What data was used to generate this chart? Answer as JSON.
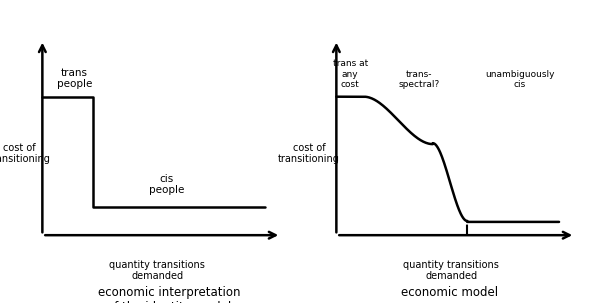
{
  "background_color": "#ffffff",
  "fig_width": 6.0,
  "fig_height": 3.03,
  "left_chart": {
    "title": "economic interpretation\nof the identity model",
    "ylabel": "cost of\ntransitioning",
    "xlabel": "quantity transitions\ndemanded",
    "curve_label_trans": "trans\npeople",
    "curve_label_cis": "cis\npeople"
  },
  "right_chart": {
    "title": "economic model",
    "ylabel": "cost of\ntransitioning",
    "xlabel": "quantity transitions\ndemanded",
    "label_trans_any": "trans at\nany\ncost",
    "label_trans_spectral": "trans-\nspectral?",
    "label_cis": "unambiguously\ncis"
  }
}
